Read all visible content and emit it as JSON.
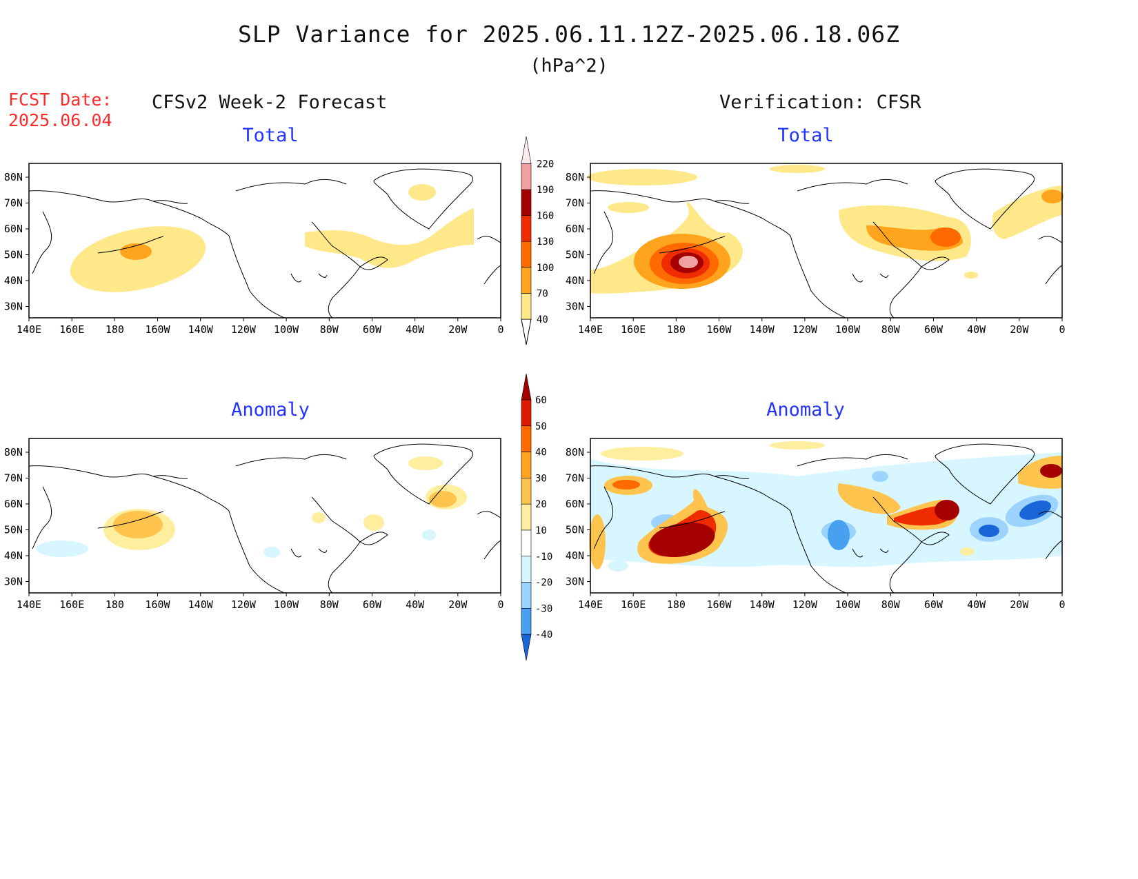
{
  "header": {
    "title": "SLP Variance for 2025.06.11.12Z-2025.06.18.06Z",
    "units": "(hPa^2)",
    "fcst_label": "FCST Date:",
    "fcst_date": "2025.06.04"
  },
  "columns": {
    "left": "CFSv2 Week-2 Forecast",
    "right": "Verification: CFSR"
  },
  "panels": {
    "total_label": "Total",
    "anomaly_label": "Anomaly"
  },
  "axes": {
    "lon_labels": [
      "140E",
      "160E",
      "180",
      "160W",
      "140W",
      "120W",
      "100W",
      "80W",
      "60W",
      "40W",
      "20W",
      "0"
    ],
    "lat_labels": [
      "80N",
      "70N",
      "60N",
      "50N",
      "40N",
      "30N"
    ]
  },
  "colorbars": {
    "total": {
      "levels": [
        "40",
        "70",
        "100",
        "130",
        "160",
        "190",
        "220"
      ],
      "colors": [
        "#ffe88a",
        "#ffa41c",
        "#ff6a00",
        "#ef2b00",
        "#a50000",
        "#f0a0a0",
        "#fde8ec"
      ]
    },
    "anomaly": {
      "levels": [
        "60",
        "50",
        "40",
        "30",
        "20",
        "10",
        "-10",
        "-20",
        "-30",
        "-40"
      ],
      "colors": [
        "#a50000",
        "#dc1a00",
        "#ff6a00",
        "#ffa41c",
        "#ffc44d",
        "#ffee9e",
        "#ffffff",
        "#d8f6ff",
        "#9cd4ff",
        "#4aa0f0",
        "#1a66d8"
      ]
    }
  }
}
